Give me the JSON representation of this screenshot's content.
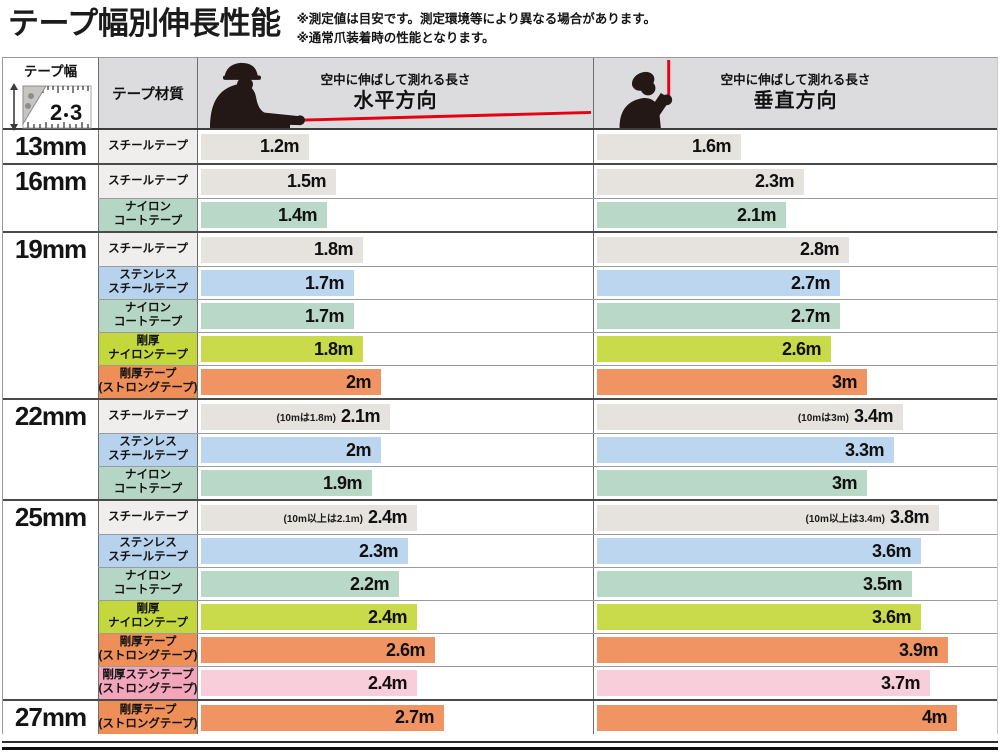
{
  "title": "テープ幅別伸長性能",
  "notes": [
    "※測定値は目安です。測定環境等により異なる場合があります。",
    "※通常爪装着時の性能となります。"
  ],
  "header": {
    "tape_width": "テープ幅",
    "tape_material": "テープ材質",
    "tape_icon_numbers": [
      "2",
      "3"
    ],
    "horizontal": {
      "caption": "空中に伸ばして測れる長さ",
      "label": "水平方向"
    },
    "vertical": {
      "caption": "空中に伸ばして測れる長さ",
      "label": "垂直方向"
    }
  },
  "palette": {
    "steel": {
      "cell": "#f0eeec",
      "bar": "#e6e3df"
    },
    "stainless": {
      "cell": "#b7d2ed",
      "bar": "#bcd6ef"
    },
    "nylon": {
      "cell": "#b6d6c5",
      "bar": "#bad8c8"
    },
    "g_nylon": {
      "cell": "#c4d73d",
      "bar": "#c9da4b"
    },
    "g_strong": {
      "cell": "#ef8f58",
      "bar": "#f09463"
    },
    "g_sten": {
      "cell": "#f3a6bb",
      "bar": "#f9cedb"
    }
  },
  "accent_red": "#e60012",
  "chart_data": {
    "type": "bar",
    "orientation": "horizontal",
    "unit": "m",
    "title": "テープ幅別伸長性能",
    "series_labels": [
      "水平方向",
      "垂直方向"
    ],
    "xlim": [
      0,
      4.4
    ],
    "groups": [
      {
        "width_label": "13mm",
        "rows": [
          {
            "material_lines": [
              "スチールテープ"
            ],
            "palette": "steel",
            "h_value": 1.2,
            "h_label": "1.2m",
            "h_note": "",
            "v_value": 1.6,
            "v_label": "1.6m",
            "v_note": ""
          }
        ]
      },
      {
        "width_label": "16mm",
        "rows": [
          {
            "material_lines": [
              "スチールテープ"
            ],
            "palette": "steel",
            "h_value": 1.5,
            "h_label": "1.5m",
            "h_note": "",
            "v_value": 2.3,
            "v_label": "2.3m",
            "v_note": ""
          },
          {
            "material_lines": [
              "ナイロン",
              "コートテープ"
            ],
            "palette": "nylon",
            "h_value": 1.4,
            "h_label": "1.4m",
            "h_note": "",
            "v_value": 2.1,
            "v_label": "2.1m",
            "v_note": ""
          }
        ]
      },
      {
        "width_label": "19mm",
        "rows": [
          {
            "material_lines": [
              "スチールテープ"
            ],
            "palette": "steel",
            "h_value": 1.8,
            "h_label": "1.8m",
            "h_note": "",
            "v_value": 2.8,
            "v_label": "2.8m",
            "v_note": ""
          },
          {
            "material_lines": [
              "ステンレス",
              "スチールテープ"
            ],
            "palette": "stainless",
            "h_value": 1.7,
            "h_label": "1.7m",
            "h_note": "",
            "v_value": 2.7,
            "v_label": "2.7m",
            "v_note": ""
          },
          {
            "material_lines": [
              "ナイロン",
              "コートテープ"
            ],
            "palette": "nylon",
            "h_value": 1.7,
            "h_label": "1.7m",
            "h_note": "",
            "v_value": 2.7,
            "v_label": "2.7m",
            "v_note": ""
          },
          {
            "material_lines": [
              "剛厚",
              "ナイロンテープ"
            ],
            "palette": "g_nylon",
            "h_value": 1.8,
            "h_label": "1.8m",
            "h_note": "",
            "v_value": 2.6,
            "v_label": "2.6m",
            "v_note": ""
          },
          {
            "material_lines": [
              "剛厚テープ",
              "(ストロングテープ)"
            ],
            "palette": "g_strong",
            "h_value": 2.0,
            "h_label": "2m",
            "h_note": "",
            "v_value": 3.0,
            "v_label": "3m",
            "v_note": ""
          }
        ]
      },
      {
        "width_label": "22mm",
        "rows": [
          {
            "material_lines": [
              "スチールテープ"
            ],
            "palette": "steel",
            "h_value": 2.1,
            "h_label": "2.1m",
            "h_note": "(10mは1.8m)",
            "v_value": 3.4,
            "v_label": "3.4m",
            "v_note": "(10mは3m)"
          },
          {
            "material_lines": [
              "ステンレス",
              "スチールテープ"
            ],
            "palette": "stainless",
            "h_value": 2.0,
            "h_label": "2m",
            "h_note": "",
            "v_value": 3.3,
            "v_label": "3.3m",
            "v_note": ""
          },
          {
            "material_lines": [
              "ナイロン",
              "コートテープ"
            ],
            "palette": "nylon",
            "h_value": 1.9,
            "h_label": "1.9m",
            "h_note": "",
            "v_value": 3.0,
            "v_label": "3m",
            "v_note": ""
          }
        ]
      },
      {
        "width_label": "25mm",
        "rows": [
          {
            "material_lines": [
              "スチールテープ"
            ],
            "palette": "steel",
            "h_value": 2.4,
            "h_label": "2.4m",
            "h_note": "(10m以上は2.1m)",
            "v_value": 3.8,
            "v_label": "3.8m",
            "v_note": "(10m以上は3.4m)"
          },
          {
            "material_lines": [
              "ステンレス",
              "スチールテープ"
            ],
            "palette": "stainless",
            "h_value": 2.3,
            "h_label": "2.3m",
            "h_note": "",
            "v_value": 3.6,
            "v_label": "3.6m",
            "v_note": ""
          },
          {
            "material_lines": [
              "ナイロン",
              "コートテープ"
            ],
            "palette": "nylon",
            "h_value": 2.2,
            "h_label": "2.2m",
            "h_note": "",
            "v_value": 3.5,
            "v_label": "3.5m",
            "v_note": ""
          },
          {
            "material_lines": [
              "剛厚",
              "ナイロンテープ"
            ],
            "palette": "g_nylon",
            "h_value": 2.4,
            "h_label": "2.4m",
            "h_note": "",
            "v_value": 3.6,
            "v_label": "3.6m",
            "v_note": ""
          },
          {
            "material_lines": [
              "剛厚テープ",
              "(ストロングテープ)"
            ],
            "palette": "g_strong",
            "h_value": 2.6,
            "h_label": "2.6m",
            "h_note": "",
            "v_value": 3.9,
            "v_label": "3.9m",
            "v_note": ""
          },
          {
            "material_lines": [
              "剛厚ステンテープ",
              "(ストロングテープ)"
            ],
            "palette": "g_sten",
            "h_value": 2.4,
            "h_label": "2.4m",
            "h_note": "",
            "v_value": 3.7,
            "v_label": "3.7m",
            "v_note": ""
          }
        ]
      },
      {
        "width_label": "27mm",
        "rows": [
          {
            "material_lines": [
              "剛厚テープ",
              "(ストロングテープ)"
            ],
            "palette": "g_strong",
            "h_value": 2.7,
            "h_label": "2.7m",
            "h_note": "",
            "v_value": 4.0,
            "v_label": "4m",
            "v_note": ""
          }
        ]
      }
    ]
  }
}
